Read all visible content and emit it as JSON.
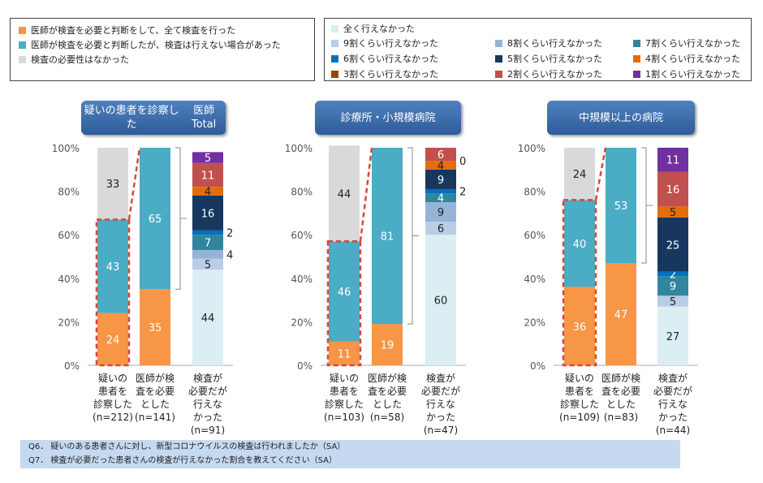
{
  "legend_main": [
    {
      "label": "医師が検査を必要と判断をして、全て検査を行った",
      "color": "#f79646"
    },
    {
      "label": "医師が検査を必要と判断したが、検査は行えない場合があった",
      "color": "#4bacc6"
    },
    {
      "label": "検査の必要性はなかった",
      "color": "#d9d9d9"
    }
  ],
  "legend_share": [
    {
      "label": "全く行えなかった",
      "color": "#dbeef4"
    },
    {
      "label": "9割くらい行えなかった",
      "color": "#b9cde5"
    },
    {
      "label": "8割くらい行えなかった",
      "color": "#95b3d7"
    },
    {
      "label": "7割くらい行えなかった",
      "color": "#31859c"
    },
    {
      "label": "6割くらい行えなかった",
      "color": "#0070c0"
    },
    {
      "label": "5割くらい行えなかった",
      "color": "#17375e"
    },
    {
      "label": "4割くらい行えなかった",
      "color": "#e46c0a"
    },
    {
      "label": "3割くらい行えなかった",
      "color": "#974806"
    },
    {
      "label": "2割くらい行えなかった",
      "color": "#c0504d"
    },
    {
      "label": "1割くらい行えなかった",
      "color": "#7030a0"
    }
  ],
  "footer": [
    "Q6． 疑いのある患者さんに対し、新型コロナウイルスの検査は行われましたか（SA）",
    "Q7． 検査が必要だった患者さんの検査が行えなかった割合を教えてください（SA）"
  ],
  "chart_data": [
    {
      "type": "bar",
      "stacked": true,
      "title": "疑いの患者を診察した医師Total",
      "yticks": [
        "0%",
        "20%",
        "40%",
        "60%",
        "80%",
        "100%"
      ],
      "ylim": [
        0,
        100
      ],
      "categories": [
        "疑いの患者を診察した(n=212)",
        "医師が検査を必要とした(n=141)",
        "検査が必要だが行えなかった(n=91)"
      ],
      "bar1": [
        24,
        43,
        33
      ],
      "bar2": [
        35,
        65
      ],
      "bar3": [
        44,
        5,
        4,
        7,
        2,
        16,
        4,
        0,
        11,
        5
      ]
    },
    {
      "type": "bar",
      "stacked": true,
      "title": "診療所・小規模病院",
      "yticks": [
        "0%",
        "20%",
        "40%",
        "60%",
        "80%",
        "100%"
      ],
      "ylim": [
        0,
        100
      ],
      "categories": [
        "疑いの患者を診察した(n=103)",
        "医師が検査を必要とした(n=58)",
        "検査が必要だが行えなかった(n=47)"
      ],
      "bar1": [
        11,
        46,
        44
      ],
      "bar2": [
        19,
        81
      ],
      "bar3": [
        60,
        6,
        9,
        4,
        2,
        9,
        4,
        0,
        6,
        0
      ]
    },
    {
      "type": "bar",
      "stacked": true,
      "title": "中規模以上の病院",
      "yticks": [
        "0%",
        "20%",
        "40%",
        "60%",
        "80%",
        "100%"
      ],
      "ylim": [
        0,
        100
      ],
      "categories": [
        "疑いの患者を診察した(n=109)",
        "医師が検査を必要とした(n=83)",
        "検査が必要だが行えなかった(n=44)"
      ],
      "bar1": [
        36,
        40,
        24
      ],
      "bar2": [
        47,
        53
      ],
      "bar3": [
        27,
        5,
        0,
        9,
        2,
        25,
        5,
        0,
        16,
        11
      ]
    }
  ],
  "panel_titles": [
    [
      "疑いの患者を診察した",
      "医師Total"
    ],
    [
      "診療所・小規模病院"
    ],
    [
      "中規模以上の病院"
    ]
  ],
  "cat_labels": [
    [
      [
        "疑いの",
        "患者を",
        "診察した",
        "(n=212)"
      ],
      [
        "医師が検",
        "査を必要",
        "とした",
        "(n=141)"
      ],
      [
        "検査が",
        "必要だが",
        "行えな",
        "かった",
        "(n=91)"
      ]
    ],
    [
      [
        "疑いの",
        "患者を",
        "診察した",
        "(n=103)"
      ],
      [
        "医師が検",
        "査を必要",
        "とした",
        "(n=58)"
      ],
      [
        "検査が",
        "必要だが",
        "行えな",
        "かった",
        "(n=47)"
      ]
    ],
    [
      [
        "疑いの",
        "患者を",
        "診察した",
        "(n=109)"
      ],
      [
        "医師が検",
        "査を必要",
        "とした",
        "(n=83)"
      ],
      [
        "検査が",
        "必要だが",
        "行えな",
        "かった",
        "(n=44)"
      ]
    ]
  ]
}
